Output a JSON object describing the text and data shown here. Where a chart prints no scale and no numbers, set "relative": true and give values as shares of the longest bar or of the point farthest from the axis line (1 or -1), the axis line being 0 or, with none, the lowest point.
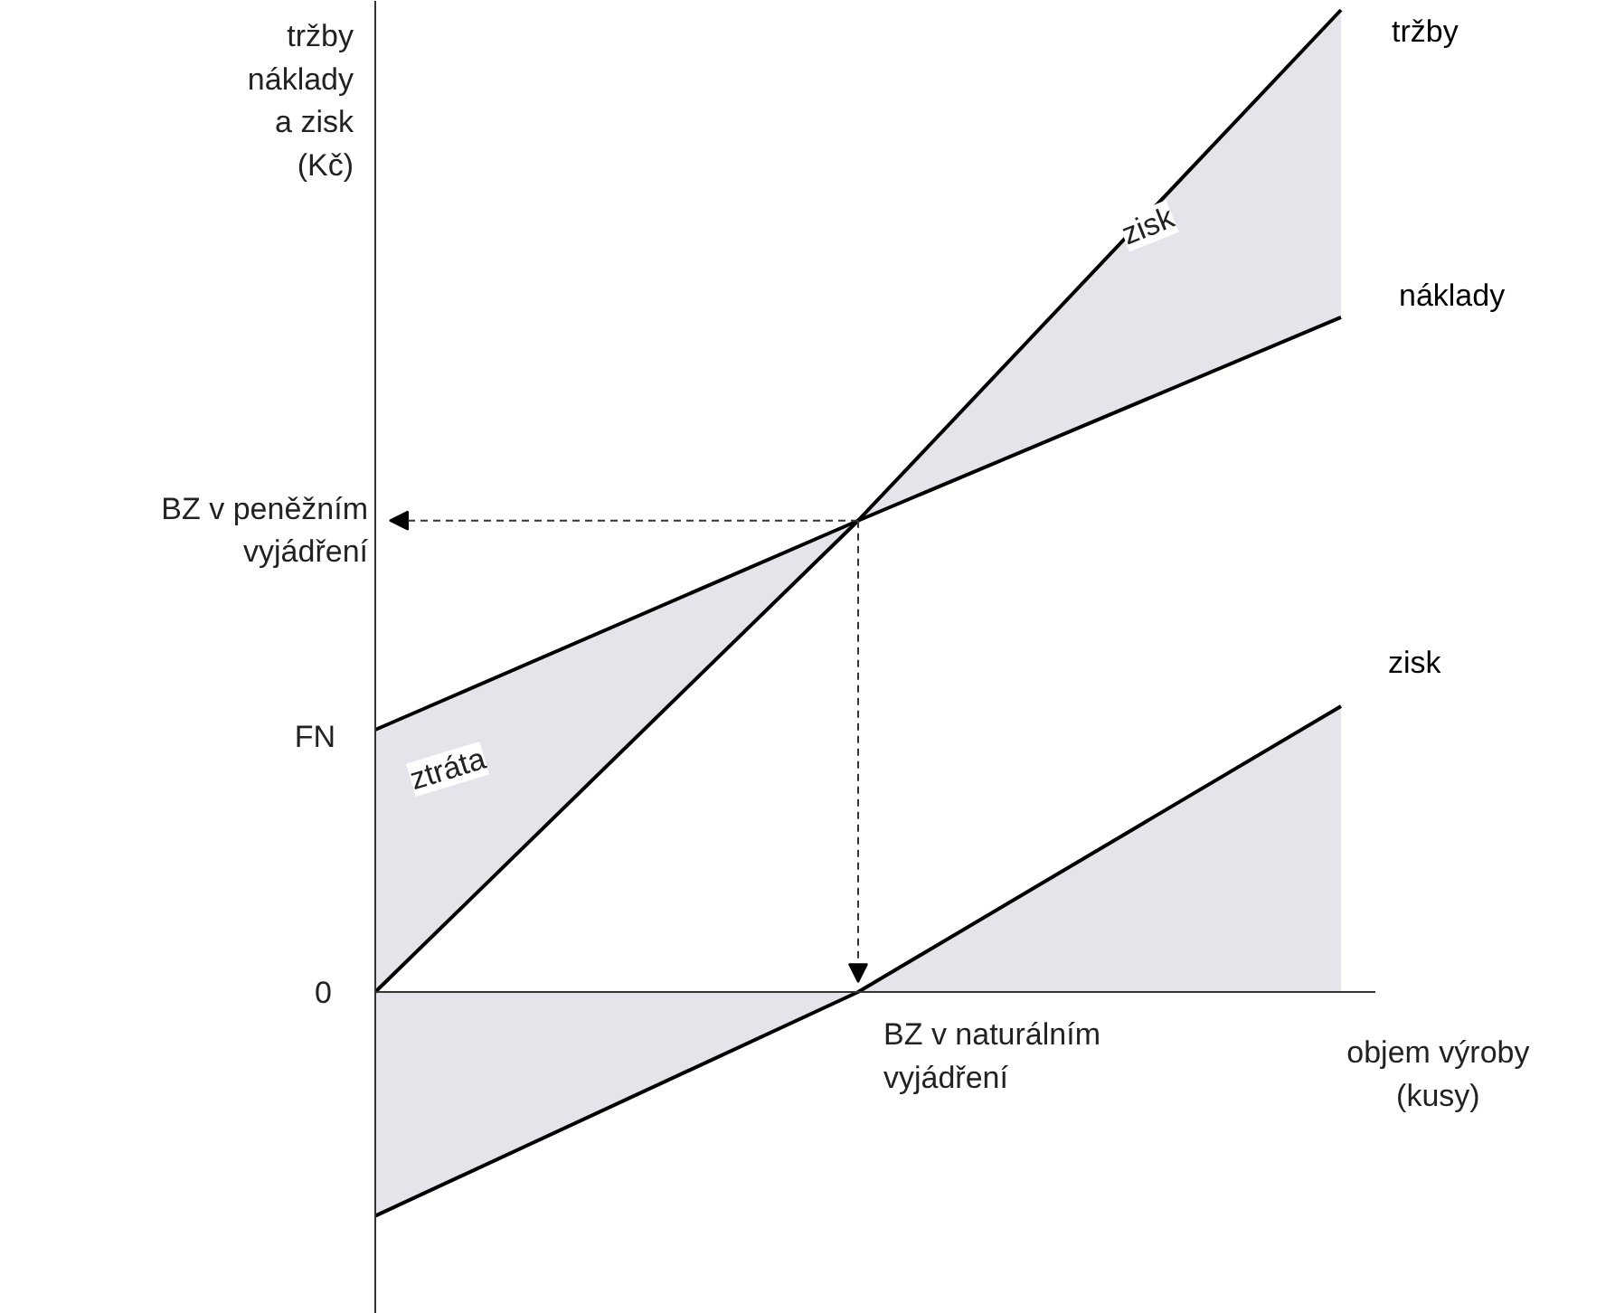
{
  "chart_data": {
    "type": "line",
    "relative": true,
    "categories": [
      null,
      null,
      null
    ],
    "ylabel": "tržby\nnáklady\na zisk\n(Kč)",
    "xlabel": "objem výroby\n(kusy)",
    "series": [
      {
        "name": "tržby",
        "color": "#000000",
        "values": [
          0,
          0.48,
          1
        ]
      },
      {
        "name": "náklady",
        "color": "#000000",
        "values": [
          0.267,
          0.48,
          0.687
        ]
      },
      {
        "name": "zisk",
        "color": "#000000",
        "values": [
          -0.228,
          0,
          0.291
        ]
      }
    ],
    "annotations": [
      "BZ v peněžním\nvyjádření",
      "FN",
      "0",
      "BZ v naturálním\nvyjádření",
      "zisk",
      "ztráta"
    ],
    "marker": "none",
    "line_style": "solid",
    "grid": false,
    "legend": false
  }
}
